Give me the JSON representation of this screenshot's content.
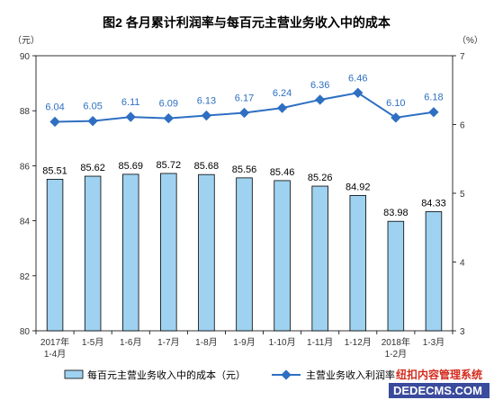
{
  "chart_data": {
    "type": "bar+line",
    "title": "图2  各月累计利润率与每百元主营业务收入中的成本",
    "left_unit": "（元）",
    "right_unit": "（%）",
    "left_ylim": [
      80,
      90
    ],
    "left_ticks": [
      "80",
      "82",
      "84",
      "86",
      "88",
      "90"
    ],
    "right_ylim": [
      3,
      7
    ],
    "right_ticks": [
      "3",
      "4",
      "5",
      "6",
      "7"
    ],
    "categories": [
      [
        "2017年",
        "1-4月"
      ],
      [
        "1-5月"
      ],
      [
        "1-6月"
      ],
      [
        "1-7月"
      ],
      [
        "1-8月"
      ],
      [
        "1-9月"
      ],
      [
        "1-10月"
      ],
      [
        "1-11月"
      ],
      [
        "1-12月"
      ],
      [
        "2018年",
        "1-2月"
      ],
      [
        "1-3月"
      ]
    ],
    "series": [
      {
        "name": "每百元主营业务收入中的成本（元）",
        "kind": "bar",
        "axis": "left",
        "color": "#9ed2f0",
        "values": [
          85.51,
          85.62,
          85.69,
          85.72,
          85.68,
          85.56,
          85.46,
          85.26,
          84.92,
          83.98,
          84.33
        ],
        "labels": [
          "85.51",
          "85.62",
          "85.69",
          "85.72",
          "85.68",
          "85.56",
          "85.46",
          "85.26",
          "84.92",
          "83.98",
          "84.33"
        ]
      },
      {
        "name": "主营业务收入利润率",
        "kind": "line",
        "axis": "right",
        "color": "#2e6fc2",
        "values": [
          6.04,
          6.05,
          6.11,
          6.09,
          6.13,
          6.17,
          6.24,
          6.36,
          6.46,
          6.1,
          6.18
        ],
        "labels": [
          "6.04",
          "6.05",
          "6.11",
          "6.09",
          "6.13",
          "6.17",
          "6.24",
          "6.36",
          "6.46",
          "6.10",
          "6.18"
        ]
      }
    ],
    "grid": false,
    "legend": "bottom"
  },
  "watermark": {
    "line1": "纽扣内容管理系统",
    "line2": "DEDECMS.COM"
  }
}
